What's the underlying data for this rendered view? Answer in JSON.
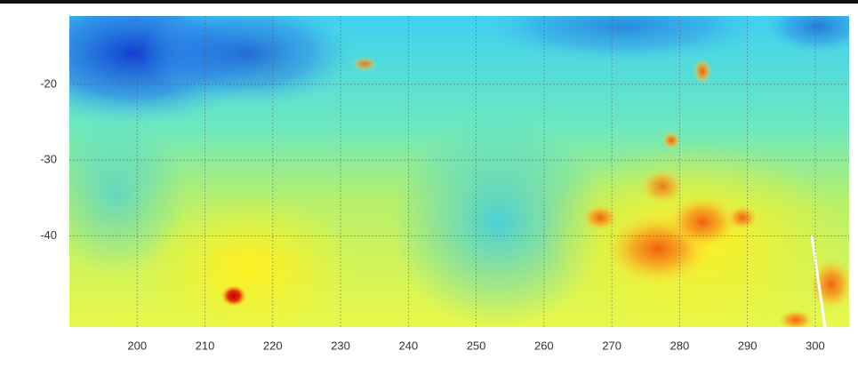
{
  "chart_data": {
    "type": "map",
    "xlim": [
      190,
      305
    ],
    "ylim": [
      -52,
      -11
    ],
    "xticks": [
      200,
      210,
      220,
      230,
      240,
      250,
      260,
      270,
      280,
      290,
      300
    ],
    "yticks": [
      -20,
      -30,
      -40
    ],
    "grid": true
  }
}
